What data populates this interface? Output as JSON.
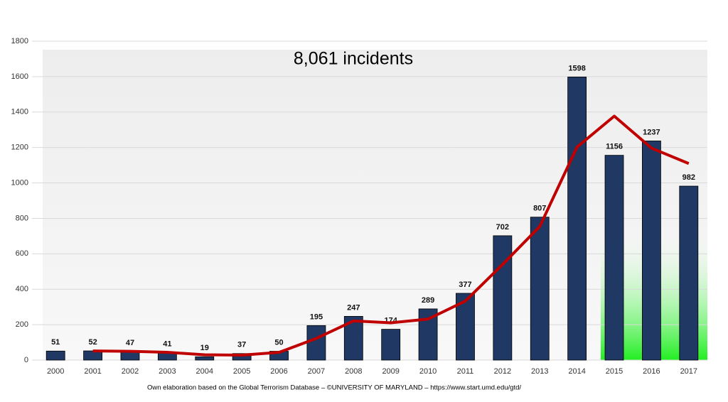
{
  "chart_data": {
    "type": "bar",
    "annotation": "8,061 incidents",
    "source": "Own elaboration based on the Global Terrorism Database – ©UNIVERSITY OF MARYLAND –  https://www.start.umd.edu/gtd/",
    "categories": [
      "2000",
      "2001",
      "2002",
      "2003",
      "2004",
      "2005",
      "2006",
      "2007",
      "2008",
      "2009",
      "2010",
      "2011",
      "2012",
      "2013",
      "2014",
      "2015",
      "2016",
      "2017"
    ],
    "series": [
      {
        "type": "bar",
        "color": "#1f3864",
        "values": [
          51,
          52,
          47,
          41,
          19,
          37,
          50,
          195,
          247,
          174,
          289,
          377,
          702,
          807,
          1598,
          1156,
          1237,
          982
        ]
      },
      {
        "type": "line",
        "color": "#c00000",
        "values": [
          null,
          51.5,
          49.5,
          44,
          30,
          28,
          43.5,
          122.5,
          221,
          210.5,
          231.5,
          333,
          539.5,
          754.5,
          1202.5,
          1377,
          1196.5,
          1109.5
        ]
      }
    ],
    "ylim": [
      0,
      1800
    ],
    "yticks": [
      0,
      200,
      400,
      600,
      800,
      1000,
      1200,
      1400,
      1600,
      1800
    ],
    "grid": true
  }
}
